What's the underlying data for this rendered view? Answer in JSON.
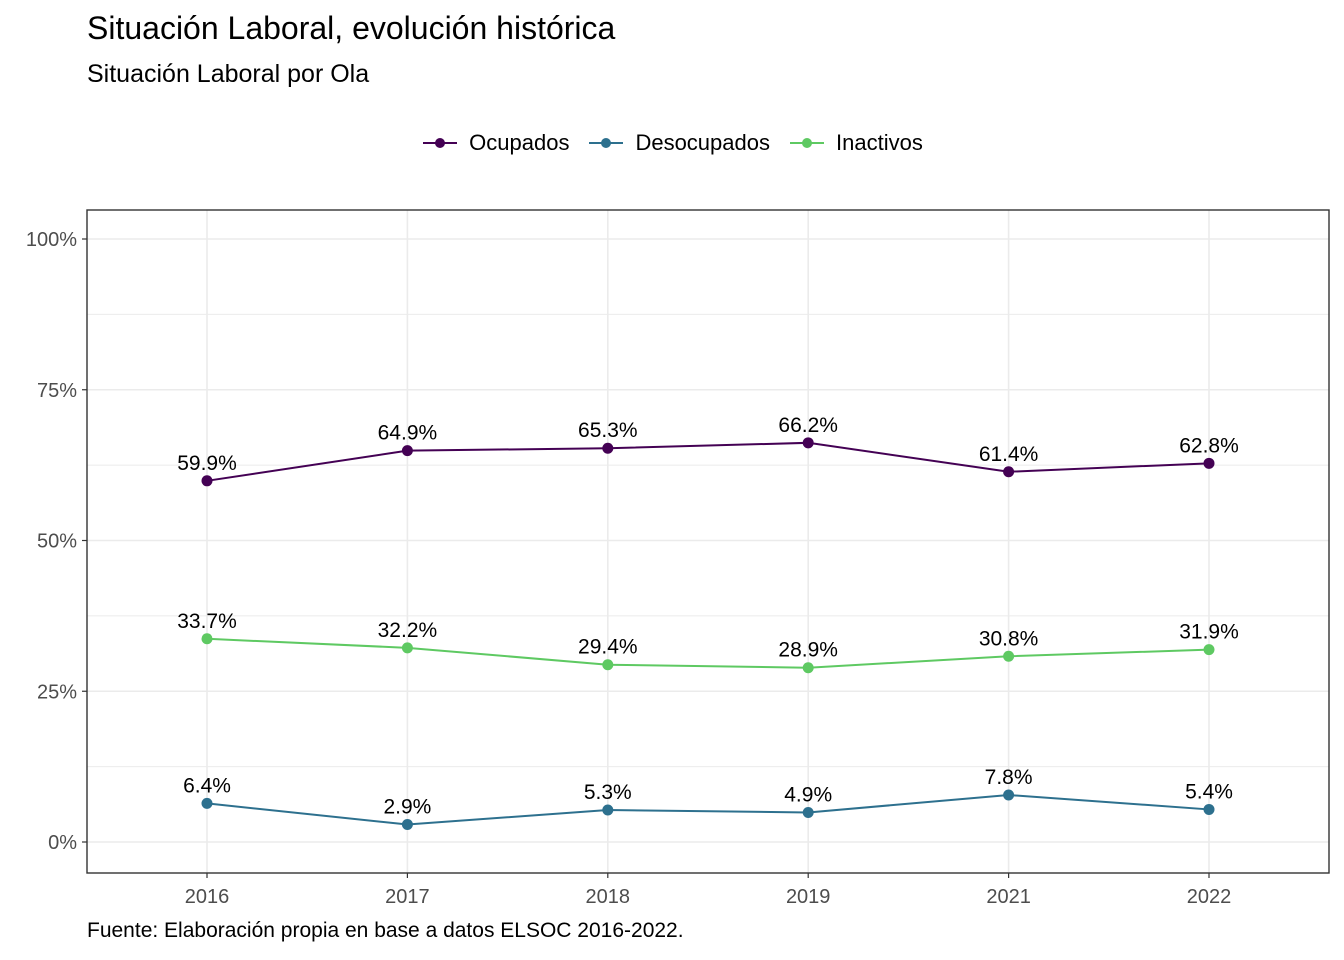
{
  "header": {
    "title": "Situación Laboral, evolución histórica",
    "subtitle": "Situación Laboral por Ola"
  },
  "footer": {
    "caption": "Fuente: Elaboración propia en base a datos ELSOC 2016-2022."
  },
  "colors": {
    "Ocupados": "#440154",
    "Desocupados": "#2d708e",
    "Inactivos": "#5ec962",
    "grid": "#ebebeb",
    "panel_border": "#333333"
  },
  "chart_data": {
    "type": "line",
    "title": "Situación Laboral, evolución histórica",
    "subtitle": "Situación Laboral por Ola",
    "xlabel": "",
    "ylabel": "",
    "categories": [
      "2016",
      "2017",
      "2018",
      "2019",
      "2021",
      "2022"
    ],
    "ylim": [
      0,
      100
    ],
    "yticks": [
      0,
      25,
      50,
      75,
      100
    ],
    "ytick_labels": [
      "0%",
      "25%",
      "50%",
      "75%",
      "100%"
    ],
    "grid": true,
    "legend_position": "top",
    "series": [
      {
        "name": "Ocupados",
        "values": [
          59.9,
          64.9,
          65.3,
          66.2,
          61.4,
          62.8
        ],
        "labels": [
          "59.9%",
          "64.9%",
          "65.3%",
          "66.2%",
          "61.4%",
          "62.8%"
        ]
      },
      {
        "name": "Desocupados",
        "values": [
          6.4,
          2.9,
          5.3,
          4.9,
          7.8,
          5.4
        ],
        "labels": [
          "6.4%",
          "2.9%",
          "5.3%",
          "4.9%",
          "7.8%",
          "5.4%"
        ]
      },
      {
        "name": "Inactivos",
        "values": [
          33.7,
          32.2,
          29.4,
          28.9,
          30.8,
          31.9
        ],
        "labels": [
          "33.7%",
          "32.2%",
          "29.4%",
          "28.9%",
          "30.8%",
          "31.9%"
        ]
      }
    ]
  }
}
